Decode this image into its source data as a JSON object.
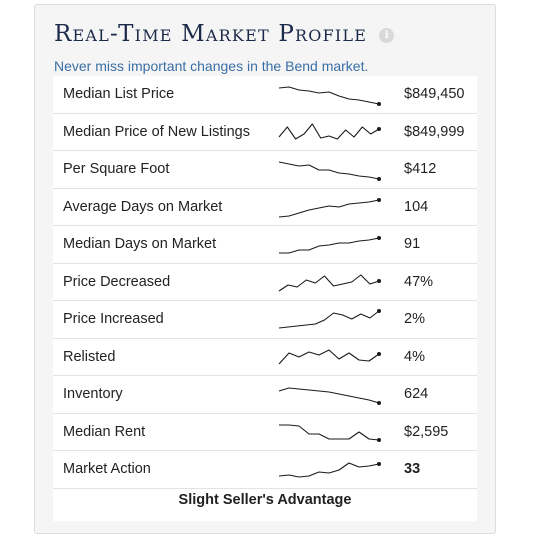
{
  "widget": {
    "title": "Real-Time Market Profile",
    "info_icon": "info-icon",
    "subtitle": "Never miss important changes in the Bend market.",
    "footer": "Slight Seller's Advantage"
  },
  "colors": {
    "title": "#1c2a4a",
    "subtitle": "#3a6ea5",
    "sparkline": "#1a1a1a"
  },
  "rows": [
    {
      "label": "Median List Price",
      "value": "$849,450",
      "trend": [
        0.85,
        0.9,
        0.75,
        0.7,
        0.6,
        0.65,
        0.45,
        0.3,
        0.25,
        0.15,
        0.05
      ]
    },
    {
      "label": "Median Price of New Listings",
      "value": "$849,999",
      "trend": [
        0.3,
        0.8,
        0.2,
        0.45,
        0.95,
        0.25,
        0.35,
        0.2,
        0.65,
        0.3,
        0.8,
        0.45,
        0.7
      ]
    },
    {
      "label": "Per Square Foot",
      "value": "$412",
      "trend": [
        0.9,
        0.8,
        0.7,
        0.75,
        0.5,
        0.5,
        0.35,
        0.3,
        0.2,
        0.15,
        0.05
      ]
    },
    {
      "label": "Average Days on Market",
      "value": "104",
      "trend": [
        0.05,
        0.1,
        0.25,
        0.4,
        0.5,
        0.6,
        0.55,
        0.7,
        0.75,
        0.8,
        0.9
      ]
    },
    {
      "label": "Median Days on Market",
      "value": "91",
      "trend": [
        0.1,
        0.1,
        0.25,
        0.25,
        0.45,
        0.5,
        0.6,
        0.6,
        0.7,
        0.75,
        0.85
      ]
    },
    {
      "label": "Price Decreased",
      "value": "47%",
      "trend": [
        0.1,
        0.4,
        0.3,
        0.65,
        0.5,
        0.85,
        0.35,
        0.45,
        0.55,
        0.9,
        0.45,
        0.6
      ]
    },
    {
      "label": "Price Increased",
      "value": "2%",
      "trend": [
        0.1,
        0.15,
        0.2,
        0.25,
        0.3,
        0.5,
        0.85,
        0.75,
        0.55,
        0.8,
        0.6,
        0.95
      ]
    },
    {
      "label": "Relisted",
      "value": "4%",
      "trend": [
        0.2,
        0.75,
        0.55,
        0.8,
        0.65,
        0.9,
        0.45,
        0.75,
        0.4,
        0.35,
        0.7
      ]
    },
    {
      "label": "Inventory",
      "value": "624",
      "trend": [
        0.7,
        0.85,
        0.8,
        0.75,
        0.7,
        0.65,
        0.55,
        0.45,
        0.35,
        0.25,
        0.1
      ]
    },
    {
      "label": "Median Rent",
      "value": "$2,595",
      "trend": [
        0.9,
        0.9,
        0.85,
        0.45,
        0.45,
        0.2,
        0.2,
        0.2,
        0.55,
        0.2,
        0.15
      ]
    },
    {
      "label": "Market Action",
      "value": "33",
      "bold": true,
      "trend": [
        0.2,
        0.25,
        0.15,
        0.2,
        0.4,
        0.35,
        0.5,
        0.85,
        0.65,
        0.7,
        0.8
      ]
    }
  ]
}
